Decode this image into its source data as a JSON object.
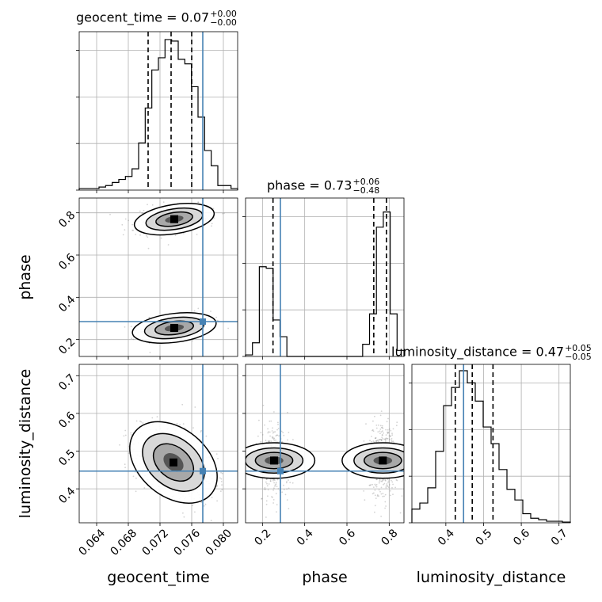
{
  "chart_data": {
    "type": "corner",
    "parameters": [
      "geocent_time",
      "phase",
      "luminosity_distance"
    ],
    "titles": [
      {
        "name": "geocent_time",
        "value": "0.07",
        "plus": "+0.00",
        "minus": "−0.00"
      },
      {
        "name": "phase",
        "value": "0.73",
        "plus": "+0.06",
        "minus": "−0.48"
      },
      {
        "name": "luminosity_distance",
        "value": "0.47",
        "plus": "+0.05",
        "minus": "−0.05"
      }
    ],
    "ranges": {
      "geocent_time": [
        0.0618,
        0.0818
      ],
      "phase": [
        0.12,
        0.87
      ],
      "luminosity_distance": [
        0.31,
        0.73
      ]
    },
    "ticks": {
      "geocent_time": [
        "0.064",
        "0.068",
        "0.072",
        "0.076",
        "0.080"
      ],
      "phase": [
        "0.2",
        "0.4",
        "0.6",
        "0.8"
      ],
      "luminosity_distance": [
        "0.4",
        "0.5",
        "0.6",
        "0.7"
      ]
    },
    "injection": {
      "geocent_time": 0.0774,
      "phase": 0.285,
      "luminosity_distance": 0.447
    },
    "quantiles": {
      "geocent_time": [
        0.0705,
        0.0734,
        0.076
      ],
      "phase": [
        0.25,
        0.727,
        0.787
      ],
      "luminosity_distance": [
        0.425,
        0.47,
        0.525
      ]
    },
    "histograms": {
      "geocent_time": [
        0.01,
        0.01,
        0.01,
        0.02,
        0.03,
        0.05,
        0.07,
        0.09,
        0.14,
        0.31,
        0.54,
        0.79,
        0.87,
        0.99,
        0.98,
        0.86,
        0.83,
        0.68,
        0.48,
        0.26,
        0.16,
        0.03,
        0.03,
        0.01
      ],
      "phase": [
        0.01,
        0.09,
        0.59,
        0.58,
        0.24,
        0.13,
        0,
        0,
        0,
        0,
        0,
        0,
        0,
        0,
        0,
        0,
        0,
        0.08,
        0.28,
        0.85,
        0.95,
        0.28,
        0.04
      ],
      "luminosity_distance": [
        0.09,
        0.13,
        0.23,
        0.47,
        0.77,
        0.89,
        1.0,
        0.92,
        0.8,
        0.63,
        0.52,
        0.35,
        0.22,
        0.15,
        0.06,
        0.03,
        0.02,
        0.01,
        0.01,
        0.005
      ]
    },
    "modes": {
      "geocent_time_vs_phase": [
        {
          "mean": [
            0.0738,
            0.77
          ],
          "sd": [
            0.0021,
            0.031
          ],
          "rho": 0.35,
          "weight": 0.62
        },
        {
          "mean": [
            0.0738,
            0.255
          ],
          "sd": [
            0.0022,
            0.03
          ],
          "rho": 0.3,
          "weight": 0.38
        }
      ],
      "geocent_time_vs_luminosity_distance": [
        {
          "mean": [
            0.0737,
            0.47
          ],
          "sd": [
            0.0023,
            0.045
          ],
          "rho": -0.35,
          "weight": 1.0
        }
      ],
      "phase_vs_luminosity_distance": [
        {
          "mean": [
            0.255,
            0.475
          ],
          "sd": [
            0.035,
            0.045
          ],
          "rho": 0,
          "weight": 0.4
        },
        {
          "mean": [
            0.77,
            0.475
          ],
          "sd": [
            0.035,
            0.045
          ],
          "rho": 0,
          "weight": 0.6
        }
      ]
    },
    "colors": {
      "injection": "#4682b4",
      "hist": "#000000",
      "grid": "#b0b0b0",
      "points": "#808080"
    }
  }
}
